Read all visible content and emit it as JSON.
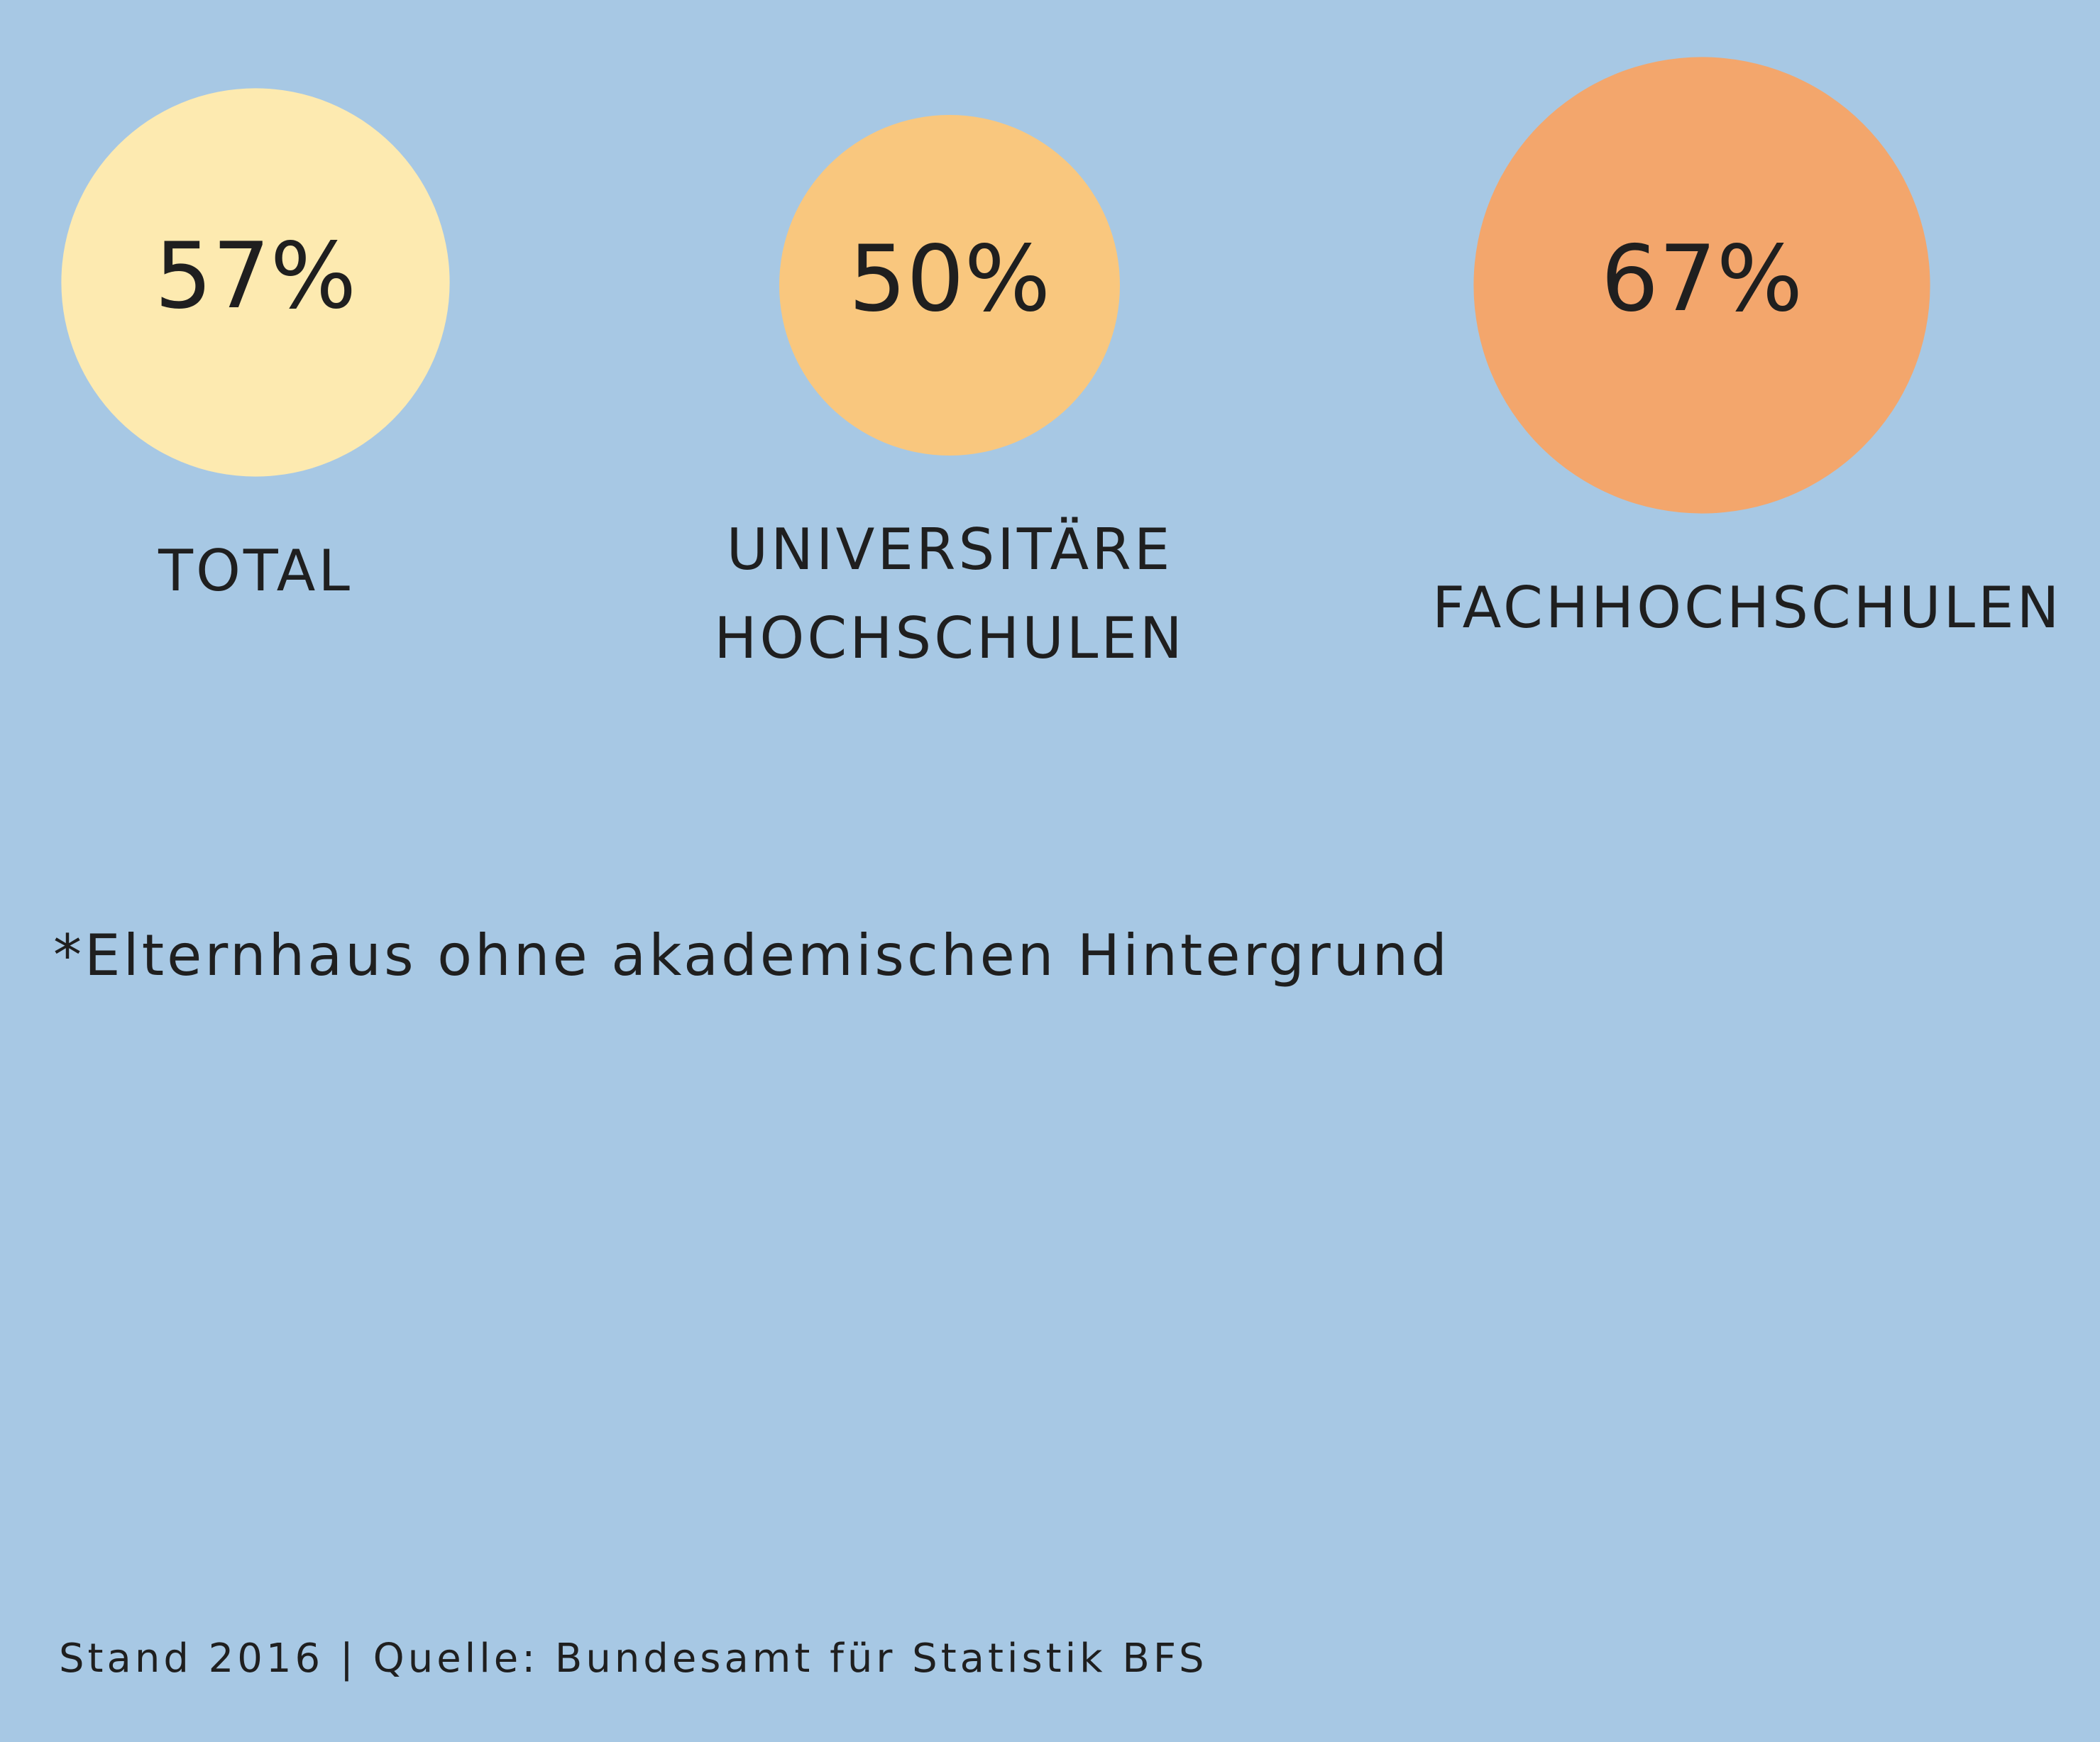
{
  "chart_data": {
    "type": "bubble",
    "categories": [
      "TOTAL",
      "UNIVERSITÄRE HOCHSCHULEN",
      "FACHHOCHSCHULEN"
    ],
    "values": [
      57,
      50,
      67
    ],
    "value_labels": [
      "57%",
      "50%",
      "67%"
    ],
    "colors": [
      "#fdeab0",
      "#f9c77e",
      "#f3a66c"
    ],
    "footnote": "*Elternhaus ohne akademischen Hintergrund",
    "source": "Stand 2016 | Quelle: Bundesamt für Statistik BFS"
  }
}
